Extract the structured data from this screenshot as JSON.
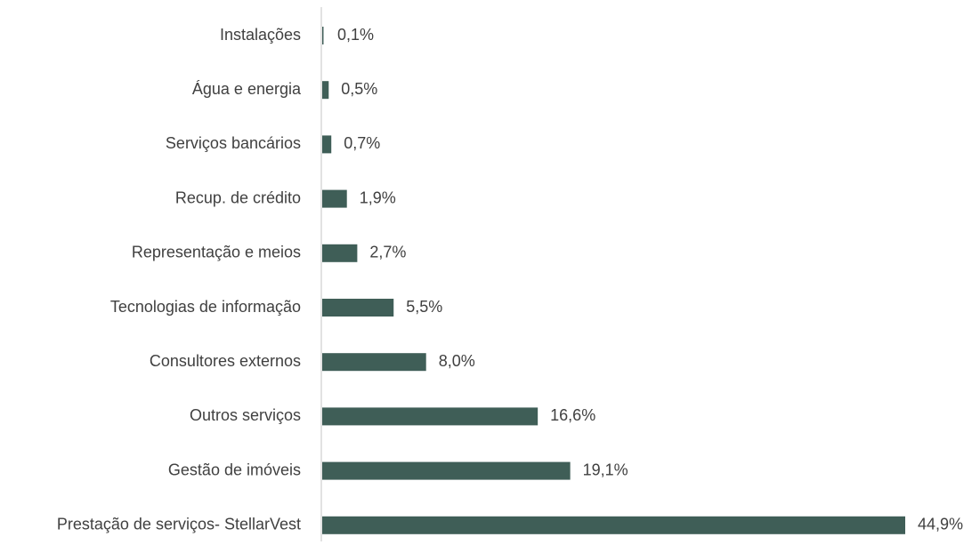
{
  "chart_data": {
    "type": "bar",
    "orientation": "horizontal",
    "categories": [
      "Instalações",
      "Água e energia",
      "Serviços bancários",
      "Recup. de crédito",
      "Representação e meios",
      "Tecnologias de informação",
      "Consultores externos",
      "Outros serviços",
      "Gestão de imóveis",
      "Prestação de serviços- StellarVest"
    ],
    "values": [
      0.1,
      0.5,
      0.7,
      1.9,
      2.7,
      5.5,
      8.0,
      16.6,
      19.1,
      44.9
    ],
    "value_labels": [
      "0,1%",
      "0,5%",
      "0,7%",
      "1,9%",
      "2,7%",
      "5,5%",
      "8,0%",
      "16,6%",
      "19,1%",
      "44,9%"
    ],
    "color": "#3f5e57"
  }
}
